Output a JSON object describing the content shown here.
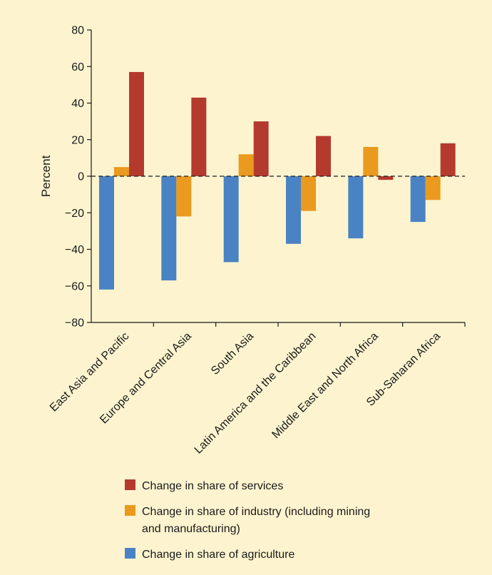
{
  "colors": {
    "background": "#fdf4cf",
    "services": "#b53a2e",
    "industry": "#e99a1f",
    "agriculture": "#4a83c4"
  },
  "chart_data": {
    "type": "bar",
    "title": "",
    "xlabel": "",
    "ylabel": "Percent",
    "ylim": [
      -80,
      80
    ],
    "yticks": [
      80,
      60,
      40,
      20,
      0,
      -20,
      -40,
      -60,
      -80
    ],
    "ytick_labels": [
      "80",
      "60",
      "40",
      "20",
      "0",
      "−20",
      "−40",
      "−60",
      "−80"
    ],
    "grid": false,
    "zero_line": "dashed",
    "legend_position": "bottom",
    "categories": [
      "East Asia and Pacific",
      "Europe and Central Asia",
      "South Asia",
      "Latin America and the Caribbean",
      "Middle East and North Africa",
      "Sub-Saharan Africa"
    ],
    "series": [
      {
        "name": "Change in share of agriculture",
        "color": "#4a83c4",
        "values": [
          -62,
          -57,
          -47,
          -37,
          -34,
          -25
        ]
      },
      {
        "name": "Change in share of industry (including mining and manufacturing)",
        "color": "#e99a1f",
        "values": [
          5,
          -22,
          12,
          -19,
          16,
          -13
        ]
      },
      {
        "name": "Change in share of services",
        "color": "#b53a2e",
        "values": [
          57,
          43,
          30,
          22,
          -2,
          18
        ]
      }
    ],
    "legend": [
      {
        "series": 2,
        "lines": [
          "Change in share of services"
        ]
      },
      {
        "series": 1,
        "lines": [
          "Change in share of industry (including mining",
          "and manufacturing)"
        ]
      },
      {
        "series": 0,
        "lines": [
          "Change in share of agriculture"
        ]
      }
    ]
  }
}
